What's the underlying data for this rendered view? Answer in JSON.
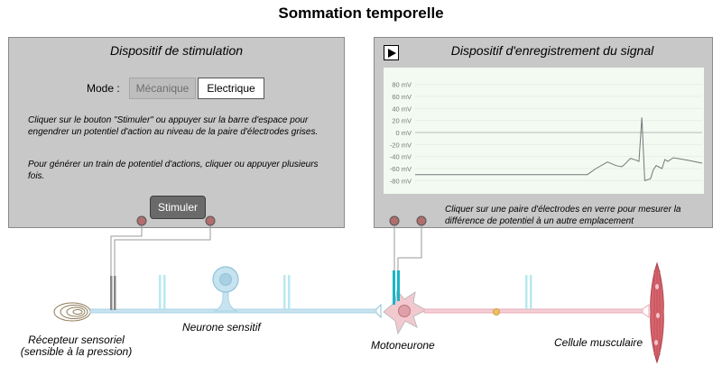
{
  "page": {
    "title": "Sommation temporelle"
  },
  "stimulation": {
    "title": "Dispositif de stimulation",
    "mode_label": "Mode :",
    "modes": [
      "Mécanique",
      "Electrique"
    ],
    "selected_mode": "Electrique",
    "instructions_1": "Cliquer sur le bouton \"Stimuler\" ou appuyer sur la barre d'espace pour engendrer un potentiel d'action au niveau de la paire d'électrodes grises.",
    "instructions_2": "Pour générer un train de potentiel d'actions, cliquer ou appuyer plusieurs fois.",
    "stimulate_label": "Stimuler"
  },
  "recording": {
    "title": "Dispositif d'enregistrement du signal",
    "instructions": "Cliquer sur une paire d'électrodes en verre pour mesurer la différence de potentiel à un autre emplacement",
    "y_ticks": [
      "80 mV",
      "60 mV",
      "40 mV",
      "20 mV",
      "0 mV",
      "-20 mV",
      "-40 mV",
      "-60 mV",
      "-80 mV"
    ]
  },
  "labels": {
    "receptor": "Récepteur sensoriel\n(sensible à la pression)",
    "sensory_neuron": "Neurone sensitif",
    "motor_neuron": "Motoneurone",
    "muscle_cell": "Cellule musculaire"
  },
  "colors": {
    "panel_bg": "#c8c8c8",
    "graph_bg": "#f2faf2",
    "trace": "#777777",
    "sensory_axon": "#a9d3e6",
    "motor_axon": "#e8a9b4",
    "muscle": "#d9646e",
    "electrode_grey": "#888888",
    "electrode_glass": "#b8e8f0",
    "electrode_cyan": "#18b6c8"
  },
  "chart_data": {
    "type": "line",
    "y_unit": "mV",
    "ylim": [
      -90,
      90
    ],
    "y_ticks": [
      80,
      60,
      40,
      20,
      0,
      -20,
      -40,
      -60,
      -80
    ],
    "series": [
      {
        "values_x": [
          0,
          60,
          63,
          67,
          70,
          72,
          73,
          75,
          77,
          78,
          79,
          80,
          82,
          83,
          84,
          86,
          87,
          88,
          90,
          95,
          100
        ],
        "values_y": [
          -70,
          -70,
          -60,
          -49,
          -55,
          -57,
          -53,
          -43,
          -46,
          -48,
          25,
          -80,
          -77,
          -62,
          -55,
          -60,
          -45,
          -48,
          -42,
          -46,
          -51
        ]
      }
    ]
  }
}
